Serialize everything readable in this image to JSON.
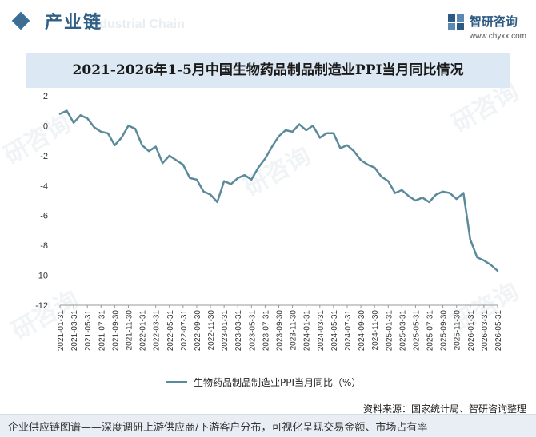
{
  "header": {
    "section_title": "产业链",
    "section_subtitle": "Industrial Chain"
  },
  "brand": {
    "name": "智研咨询",
    "url": "www.chyxx.com",
    "color": "#2d5a82"
  },
  "watermark_text": "研咨询",
  "source": "资料来源：国家统计局、智研咨询整理",
  "footer": "企业供应链图谱——深度调研上游供应商/下游客户分布，可视化呈现交易金额、市场占有率",
  "chart_data": {
    "type": "line",
    "title": "2021-2026年1-5月中国生物药品制品制造业PPI当月同比情况",
    "xlabel": "",
    "ylabel": "",
    "ylim": [
      -12,
      2
    ],
    "yticks": [
      2,
      0,
      -2,
      -4,
      -6,
      -8,
      -10,
      -12
    ],
    "grid": false,
    "legend_position": "bottom-center",
    "line_color": "#5b8a9a",
    "x_tick_labels": [
      "2021-01-31",
      "2021-03-31",
      "2021-05-31",
      "2021-07-31",
      "2021-09-30",
      "2021-11-30",
      "2022-01-31",
      "2022-03-31",
      "2022-05-31",
      "2022-07-31",
      "2022-09-30",
      "2022-11-30",
      "2023-01-31",
      "2023-03-31",
      "2023-05-31",
      "2023-07-31",
      "2023-09-30",
      "2023-11-30",
      "2024-01-31",
      "2024-03-31",
      "2024-05-31",
      "2024-07-31",
      "2024-09-30",
      "2024-11-30",
      "2025-01-31",
      "2025-03-31",
      "2025-05-31",
      "2025-07-31",
      "2025-09-30",
      "2025-11-30",
      "2026-01-31",
      "2026-03-31",
      "2026-05-31"
    ],
    "x": [
      "2021-01",
      "2021-02",
      "2021-03",
      "2021-04",
      "2021-05",
      "2021-06",
      "2021-07",
      "2021-08",
      "2021-09",
      "2021-10",
      "2021-11",
      "2021-12",
      "2022-01",
      "2022-02",
      "2022-03",
      "2022-04",
      "2022-05",
      "2022-06",
      "2022-07",
      "2022-08",
      "2022-09",
      "2022-10",
      "2022-11",
      "2022-12",
      "2023-01",
      "2023-02",
      "2023-03",
      "2023-04",
      "2023-05",
      "2023-06",
      "2023-07",
      "2023-08",
      "2023-09",
      "2023-10",
      "2023-11",
      "2023-12",
      "2024-01",
      "2024-02",
      "2024-03",
      "2024-04",
      "2024-05",
      "2024-06",
      "2024-07",
      "2024-08",
      "2024-09",
      "2024-10",
      "2024-11",
      "2024-12",
      "2025-01",
      "2025-02",
      "2025-03",
      "2025-04",
      "2025-05",
      "2025-06",
      "2025-07",
      "2025-08",
      "2025-09",
      "2025-10",
      "2025-11",
      "2025-12",
      "2026-01",
      "2026-02",
      "2026-03",
      "2026-04",
      "2026-05"
    ],
    "series": [
      {
        "name": "生物药品制品制造业PPI当月同比（%）",
        "values": [
          0.8,
          1.0,
          0.2,
          0.7,
          0.5,
          -0.1,
          -0.4,
          -0.5,
          -1.3,
          -0.8,
          0.0,
          -0.2,
          -1.3,
          -1.7,
          -1.4,
          -2.5,
          -2.0,
          -2.3,
          -2.6,
          -3.5,
          -3.6,
          -4.4,
          -4.6,
          -5.1,
          -3.7,
          -3.9,
          -3.5,
          -3.3,
          -3.6,
          -2.8,
          -2.2,
          -1.4,
          -0.7,
          -0.3,
          -0.4,
          0.1,
          -0.3,
          0.0,
          -0.8,
          -0.5,
          -0.5,
          -1.5,
          -1.3,
          -1.7,
          -2.3,
          -2.6,
          -2.8,
          -3.4,
          -3.7,
          -4.5,
          -4.3,
          -4.7,
          -5.0,
          -4.8,
          -5.1,
          -4.6,
          -4.4,
          -4.5,
          -4.9,
          -4.5,
          -7.6,
          -8.8,
          -9.0,
          -9.3,
          -9.7
        ]
      }
    ]
  }
}
